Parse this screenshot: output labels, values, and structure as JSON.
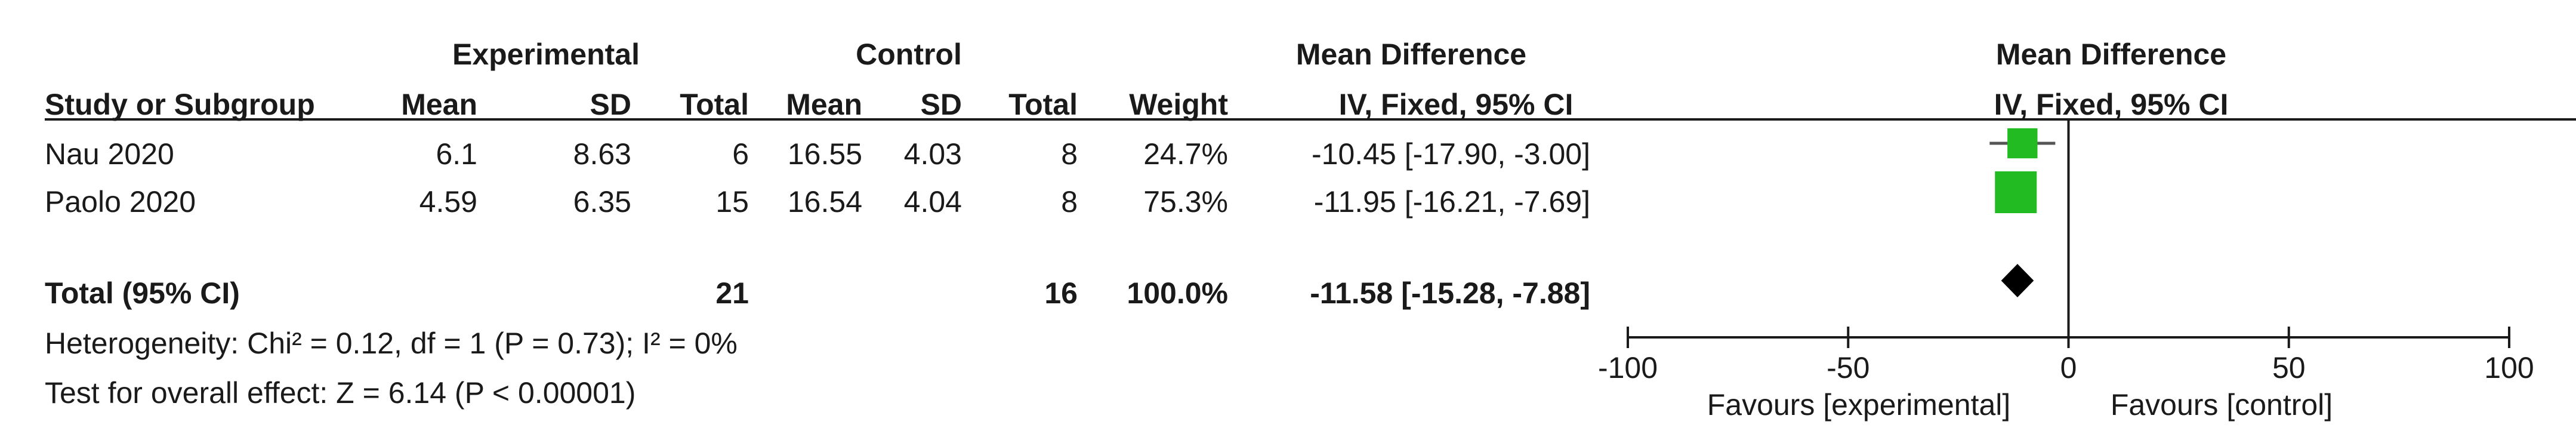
{
  "header": {
    "experimental": "Experimental",
    "control": "Control",
    "mean_difference_left": "Mean Difference",
    "mean_difference_right": "Mean Difference",
    "study": "Study or Subgroup",
    "mean_e": "Mean",
    "sd_e": "SD",
    "total_e": "Total",
    "mean_c": "Mean",
    "sd_c": "SD",
    "total_c": "Total",
    "weight": "Weight",
    "method_left": "IV, Fixed, 95% CI",
    "method_right": "IV, Fixed, 95% CI"
  },
  "studies": [
    {
      "name": "Nau 2020",
      "mean_e": "6.1",
      "sd_e": "8.63",
      "total_e": "6",
      "mean_c": "16.55",
      "sd_c": "4.03",
      "total_c": "8",
      "weight": "24.7%",
      "ci_text": "-10.45 [-17.90, -3.00]"
    },
    {
      "name": "Paolo 2020",
      "mean_e": "4.59",
      "sd_e": "6.35",
      "total_e": "15",
      "mean_c": "16.54",
      "sd_c": "4.04",
      "total_c": "8",
      "weight": "75.3%",
      "ci_text": "-11.95 [-16.21, -7.69]"
    }
  ],
  "total": {
    "name": "Total (95% CI)",
    "total_e": "21",
    "total_c": "16",
    "weight": "100.0%",
    "ci_text": "-11.58 [-15.28, -7.88]"
  },
  "notes": {
    "heterogeneity": "Heterogeneity: Chi² = 0.12, df = 1 (P = 0.73); I² = 0%",
    "overall_effect": "Test for overall effect: Z = 6.14 (P < 0.00001)"
  },
  "axis": {
    "favours_left": "Favours [experimental]",
    "favours_right": "Favours [control]"
  },
  "chart_data": {
    "type": "scatter",
    "subtype": "forest",
    "xlim": [
      -100,
      100
    ],
    "xticks": [
      -100,
      -50,
      0,
      50,
      100
    ],
    "null_line": 0,
    "marker_color": "#22bb22",
    "diamond_color": "#000000",
    "studies": [
      {
        "label": "Nau 2020",
        "estimate": -10.45,
        "ci_low": -17.9,
        "ci_high": -3.0,
        "weight": 24.7
      },
      {
        "label": "Paolo 2020",
        "estimate": -11.95,
        "ci_low": -16.21,
        "ci_high": -7.69,
        "weight": 75.3
      }
    ],
    "pooled": {
      "label": "Total (95% CI)",
      "estimate": -11.58,
      "ci_low": -15.28,
      "ci_high": -7.88
    }
  }
}
